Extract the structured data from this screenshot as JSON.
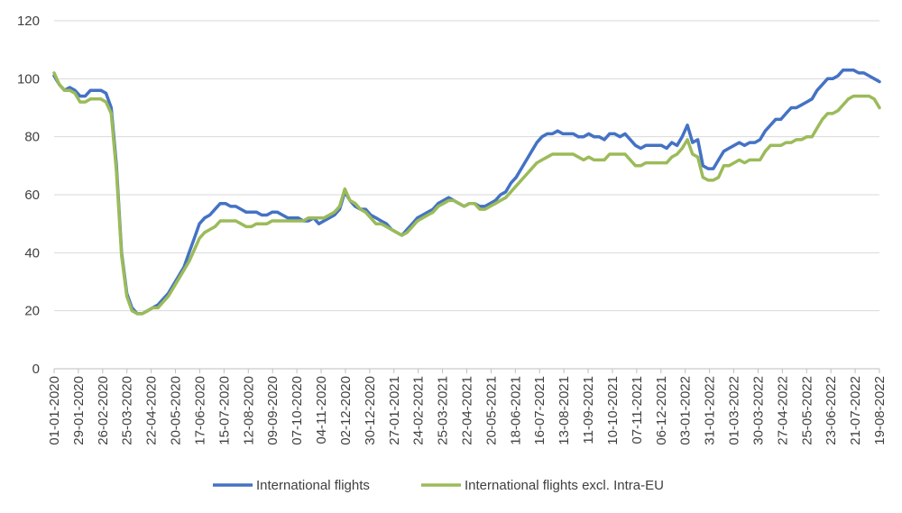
{
  "chart_data": {
    "type": "line",
    "ylim": [
      0,
      120
    ],
    "yticks": [
      0,
      20,
      40,
      60,
      80,
      100,
      120
    ],
    "grid": true,
    "legend_position": "bottom",
    "xticks": [
      "01-01-2020",
      "29-01-2020",
      "26-02-2020",
      "25-03-2020",
      "22-04-2020",
      "20-05-2020",
      "17-06-2020",
      "15-07-2020",
      "12-08-2020",
      "09-09-2020",
      "07-10-2020",
      "04-11-2020",
      "02-12-2020",
      "30-12-2020",
      "27-01-2021",
      "24-02-2021",
      "25-03-2021",
      "22-04-2021",
      "20-05-2021",
      "18-06-2021",
      "16-07-2021",
      "13-08-2021",
      "11-09-2021",
      "10-10-2021",
      "07-11-2021",
      "06-12-2021",
      "03-01-2022",
      "31-01-2022",
      "01-03-2022",
      "30-03-2022",
      "27-04-2022",
      "25-05-2022",
      "23-06-2022",
      "21-07-2022",
      "19-08-2022"
    ],
    "series": [
      {
        "name": "International flights",
        "color": "#4472C4",
        "values": [
          101,
          98,
          96,
          97,
          96,
          94,
          94,
          96,
          96,
          96,
          95,
          90,
          70,
          40,
          26,
          21,
          19,
          19,
          20,
          21,
          22,
          24,
          26,
          29,
          32,
          35,
          40,
          45,
          50,
          52,
          53,
          55,
          57,
          57,
          56,
          56,
          55,
          54,
          54,
          54,
          53,
          53,
          54,
          54,
          53,
          52,
          52,
          52,
          51,
          51,
          52,
          50,
          51,
          52,
          53,
          55,
          61,
          58,
          56,
          55,
          55,
          53,
          52,
          51,
          50,
          48,
          47,
          46,
          48,
          50,
          52,
          53,
          54,
          55,
          57,
          58,
          59,
          58,
          57,
          56,
          57,
          57,
          56,
          56,
          57,
          58,
          60,
          61,
          64,
          66,
          69,
          72,
          75,
          78,
          80,
          81,
          81,
          82,
          81,
          81,
          81,
          80,
          80,
          81,
          80,
          80,
          79,
          81,
          81,
          80,
          81,
          79,
          77,
          76,
          77,
          77,
          77,
          77,
          76,
          78,
          77,
          80,
          84,
          78,
          79,
          70,
          69,
          69,
          72,
          75,
          76,
          77,
          78,
          77,
          78,
          78,
          79,
          82,
          84,
          86,
          86,
          88,
          90,
          90,
          91,
          92,
          93,
          96,
          98,
          100,
          100,
          101,
          103,
          103,
          103,
          102,
          102,
          101,
          100,
          99
        ]
      },
      {
        "name": "International flights excl. Intra-EU",
        "color": "#9BBB59",
        "values": [
          102,
          98,
          96,
          96,
          95,
          92,
          92,
          93,
          93,
          93,
          92,
          88,
          68,
          39,
          25,
          20,
          19,
          19,
          20,
          21,
          21,
          23,
          25,
          28,
          31,
          34,
          37,
          41,
          45,
          47,
          48,
          49,
          51,
          51,
          51,
          51,
          50,
          49,
          49,
          50,
          50,
          50,
          51,
          51,
          51,
          51,
          51,
          51,
          51,
          52,
          52,
          52,
          52,
          53,
          54,
          56,
          62,
          58,
          57,
          55,
          54,
          52,
          50,
          50,
          49,
          48,
          47,
          46,
          47,
          49,
          51,
          52,
          53,
          54,
          56,
          57,
          58,
          58,
          57,
          56,
          57,
          57,
          55,
          55,
          56,
          57,
          58,
          59,
          61,
          63,
          65,
          67,
          69,
          71,
          72,
          73,
          74,
          74,
          74,
          74,
          74,
          73,
          72,
          73,
          72,
          72,
          72,
          74,
          74,
          74,
          74,
          72,
          70,
          70,
          71,
          71,
          71,
          71,
          71,
          73,
          74,
          76,
          79,
          74,
          73,
          66,
          65,
          65,
          66,
          70,
          70,
          71,
          72,
          71,
          72,
          72,
          72,
          75,
          77,
          77,
          77,
          78,
          78,
          79,
          79,
          80,
          80,
          83,
          86,
          88,
          88,
          89,
          91,
          93,
          94,
          94,
          94,
          94,
          93,
          90
        ]
      }
    ]
  }
}
